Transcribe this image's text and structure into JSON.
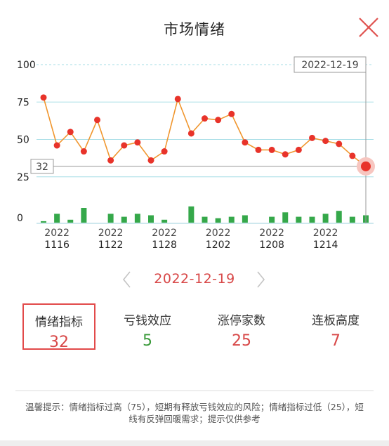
{
  "modal": {
    "title": "市场情绪"
  },
  "colors": {
    "line": "#f0962e",
    "point": "#e8332a",
    "bar": "#35a84a",
    "accent": "#d84848",
    "gain": "#3a9a3a",
    "grid": "#a6dde6"
  },
  "icons": {
    "close": "close-icon",
    "prev": "chevron-left-icon",
    "next": "chevron-right-icon"
  },
  "chart_data": {
    "type": "line",
    "x": [
      "1115",
      "1116",
      "1117",
      "1118",
      "1121",
      "1122",
      "1123",
      "1124",
      "1125",
      "1128",
      "1129",
      "1130",
      "1201",
      "1202",
      "1205",
      "1206",
      "1207",
      "1208",
      "1209",
      "1212",
      "1213",
      "1214",
      "1215",
      "1216",
      "1219"
    ],
    "series": [
      {
        "values": [
          78,
          46,
          55,
          42,
          63,
          36,
          46,
          48,
          36,
          42,
          77,
          54,
          64,
          63,
          67,
          48,
          43,
          43,
          40,
          43,
          51,
          49,
          47,
          39,
          32
        ]
      }
    ],
    "bars": [
      1,
      6,
      2,
      10,
      0,
      6,
      4,
      6,
      5,
      2,
      0,
      11,
      4,
      3,
      4,
      5,
      0,
      4,
      7,
      4,
      4,
      6,
      8,
      4,
      5
    ],
    "y_ticks": [
      "0",
      "25",
      "50",
      "75",
      "100"
    ],
    "ylim": [
      0,
      100
    ],
    "x_tick_labels": [
      {
        "year": "2022",
        "day": "1116"
      },
      {
        "year": "2022",
        "day": "1122"
      },
      {
        "year": "2022",
        "day": "1128"
      },
      {
        "year": "2022",
        "day": "1202"
      },
      {
        "year": "2022",
        "day": "1208"
      },
      {
        "year": "2022",
        "day": "1214"
      }
    ],
    "crosshair": {
      "date_label": "2022-12-19",
      "value_label": "32"
    },
    "grid": true
  },
  "date_nav": {
    "current_date": "2022-12-19"
  },
  "stats": {
    "sentiment": {
      "label": "情绪指标",
      "value": "32"
    },
    "loss": {
      "label": "亏钱效应",
      "value": "5"
    },
    "limitup": {
      "label": "涨停家数",
      "value": "25"
    },
    "height": {
      "label": "连板高度",
      "value": "7"
    }
  },
  "tip": "温馨提示：情绪指标过高（75），短期有释放亏钱效应的风险；情绪指标过低（25），短线有反弹回暖需求；提示仅供参考"
}
